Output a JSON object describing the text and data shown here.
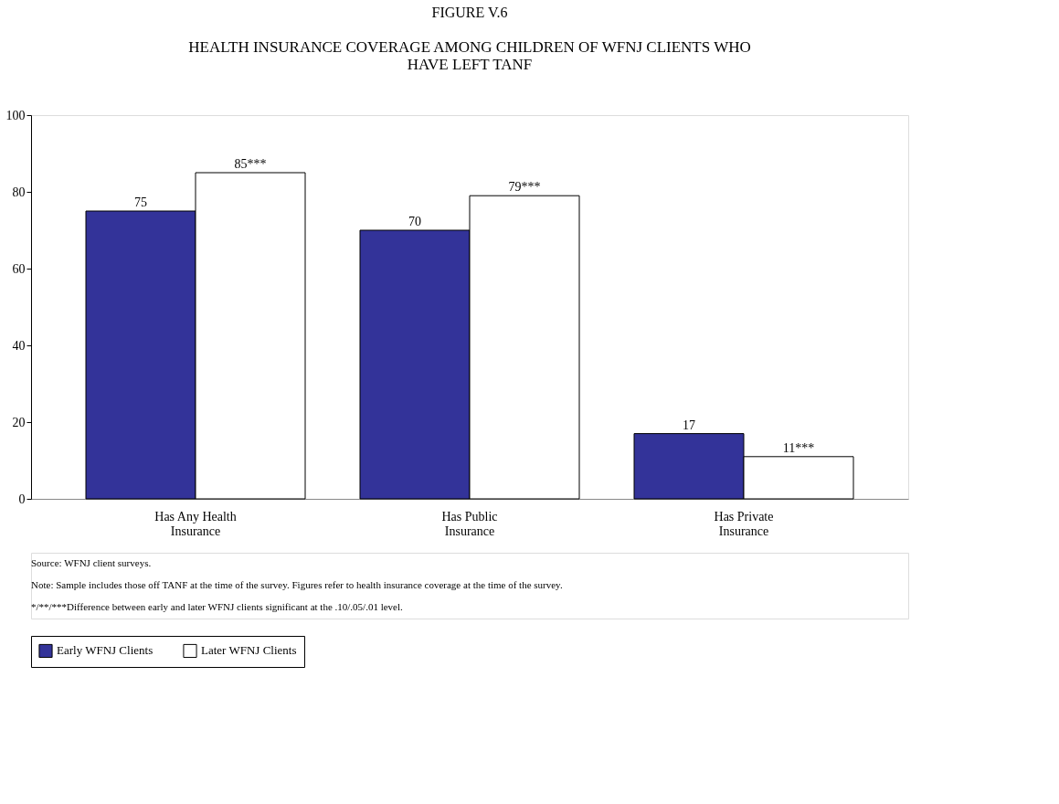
{
  "chart_data": {
    "type": "bar",
    "title": "FIGURE V.6",
    "subtitle": "HEALTH INSURANCE COVERAGE AMONG CHILDREN OF WFNJ CLIENTS WHO HAVE LEFT TANF",
    "categories": [
      "Has Any Health Insurance",
      "Has Public Insurance",
      "Has Private Insurance"
    ],
    "series": [
      {
        "name": "Early WFNJ Clients",
        "color": "#333399",
        "values": [
          75,
          70,
          17
        ],
        "value_labels": [
          "75",
          "70",
          "17"
        ]
      },
      {
        "name": "Later WFNJ Clients",
        "color": "#ffffff",
        "values": [
          85,
          79,
          11
        ],
        "value_labels": [
          "85***",
          "79***",
          "11***"
        ]
      }
    ],
    "ylim": [
      0,
      100
    ],
    "yticks": [
      0,
      20,
      40,
      60,
      80,
      100
    ],
    "grid": false,
    "legend": "bottom",
    "annotations": [
      "Source:   WFNJ client surveys.",
      "Note:      Sample includes those off TANF at the time of the survey.  Figures refer to health insurance coverage at the time of the survey.",
      "*/**/***Difference between early and later WFNJ clients significant at the .10/.05/.01 level."
    ]
  }
}
